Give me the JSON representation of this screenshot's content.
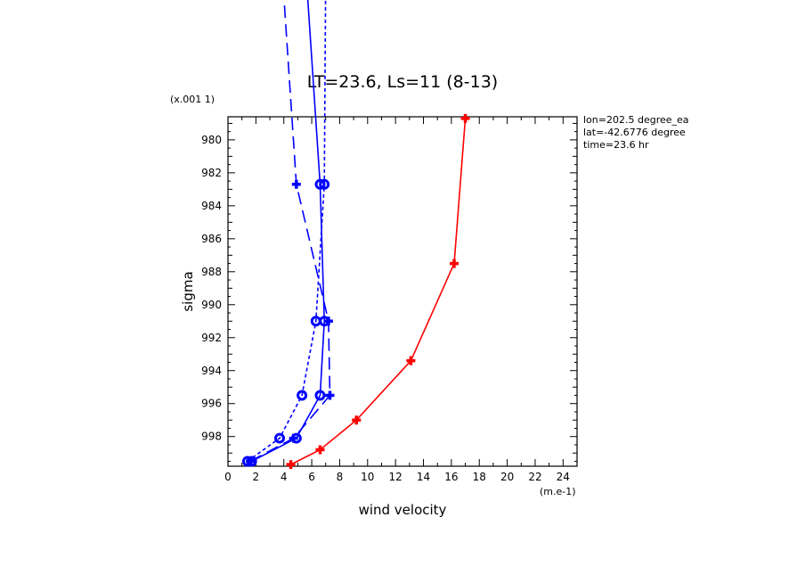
{
  "chart_data": {
    "type": "line",
    "title": "LT=23.6, Ls=11 (8-13)",
    "xlabel": "wind velocity",
    "xunits": "(m.e-1)",
    "ylabel": "sigma",
    "yscale_note": "(x.001 1)",
    "xlim": [
      0,
      25
    ],
    "ylim": [
      999.8,
      978.6
    ],
    "xticks": [
      0,
      2,
      4,
      6,
      8,
      10,
      12,
      14,
      16,
      18,
      20,
      22,
      24
    ],
    "yticks": [
      980,
      982,
      984,
      986,
      988,
      990,
      992,
      994,
      996,
      998
    ],
    "annotations": [
      "lon=202.5 degree_ea",
      "lat=-42.6776 degree",
      "time=23.6 hr"
    ],
    "series": [
      {
        "color": "#ff0000",
        "dash": "solid",
        "marker": "cross",
        "points": [
          [
            4.5,
            999.7
          ],
          [
            6.6,
            998.8
          ],
          [
            9.2,
            997.0
          ],
          [
            13.1,
            993.4
          ],
          [
            16.2,
            987.5
          ],
          [
            17.0,
            978.7
          ]
        ]
      },
      {
        "color": "#0000ff",
        "dash": "solid",
        "marker": "circle",
        "points": [
          [
            1.7,
            999.5
          ],
          [
            4.9,
            998.1
          ],
          [
            6.6,
            995.5
          ],
          [
            6.9,
            991.0
          ],
          [
            6.6,
            982.7
          ],
          [
            5.6,
            970.0
          ]
        ]
      },
      {
        "color": "#0000ff",
        "dash": "long",
        "marker": "cross",
        "points": [
          [
            1.6,
            999.5
          ],
          [
            4.7,
            998.1
          ],
          [
            7.3,
            995.5
          ],
          [
            7.2,
            991.0
          ],
          [
            4.9,
            982.7
          ],
          [
            3.9,
            970.0
          ]
        ]
      },
      {
        "color": "#0000ff",
        "dash": "short",
        "marker": "circle",
        "points": [
          [
            1.4,
            999.5
          ],
          [
            3.7,
            998.1
          ],
          [
            5.3,
            995.5
          ],
          [
            6.3,
            991.0
          ],
          [
            6.9,
            982.7
          ],
          [
            7.0,
            970.0
          ]
        ]
      }
    ]
  }
}
